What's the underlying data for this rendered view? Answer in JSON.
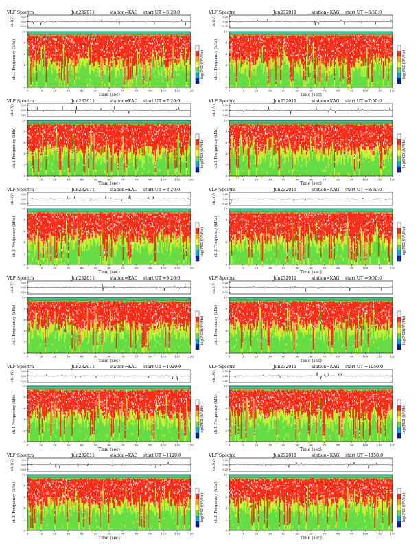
{
  "chart_data": {
    "type": "heatmap",
    "title_prefix": "VLF Spectra",
    "waveform_label": "ch.1(V)",
    "waveform_ticks": [
      "0.20",
      "0.00",
      "-0.20"
    ],
    "spectrogram_ylabel": "ch.1 Frequency (kHz)",
    "colorbar_label": "log(PSD)(V²/Hz)",
    "xlabel": "Time (sec)",
    "xlim": [
      0,
      120
    ],
    "xticks": [
      0,
      10,
      20,
      30,
      40,
      50,
      60,
      70,
      80,
      90,
      100,
      110,
      120
    ],
    "ylim": [
      0,
      10
    ],
    "yticks": [
      0,
      2,
      4,
      6,
      8,
      10
    ],
    "panels": [
      {
        "date": "Jun232011",
        "station": "station=KAG",
        "start": "start UT =6:20:0"
      },
      {
        "date": "Jun232011",
        "station": "station=KAG",
        "start": "start UT =6:50:0"
      },
      {
        "date": "Jun232011",
        "station": "station=KAG",
        "start": "start UT =7:20:0"
      },
      {
        "date": "Jun232011",
        "station": "station=KAG",
        "start": "start UT =7:50:0"
      },
      {
        "date": "Jun232011",
        "station": "station=KAG",
        "start": "start UT =8:20:0"
      },
      {
        "date": "Jun232011",
        "station": "station=KAG",
        "start": "start UT =8:50:0"
      },
      {
        "date": "Jun232011",
        "station": "station=KAG",
        "start": "start UT =9:20:0"
      },
      {
        "date": "Jun232011",
        "station": "station=KAG",
        "start": "start UT =9:50:0"
      },
      {
        "date": "Jun232011",
        "station": "station=KAG",
        "start": "start UT =1020:0"
      },
      {
        "date": "Jun232011",
        "station": "station=KAG",
        "start": "start UT =1050:0"
      },
      {
        "date": "Jun232011",
        "station": "station=KAG",
        "start": "start UT =1120:0"
      },
      {
        "date": "Jun232011",
        "station": "station=KAG",
        "start": "start UT =1150:0"
      }
    ],
    "colors": {
      "background_band": "#33cc99",
      "low": "#66dd44",
      "mid": "#ccee33",
      "high": "#ff2a1a",
      "peak": "#ffffff",
      "colorbar": [
        "#ffffff",
        "#ff2a1a",
        "#ffaa00",
        "#ffff33",
        "#66dd44",
        "#00aaee",
        "#0022aa"
      ]
    }
  }
}
